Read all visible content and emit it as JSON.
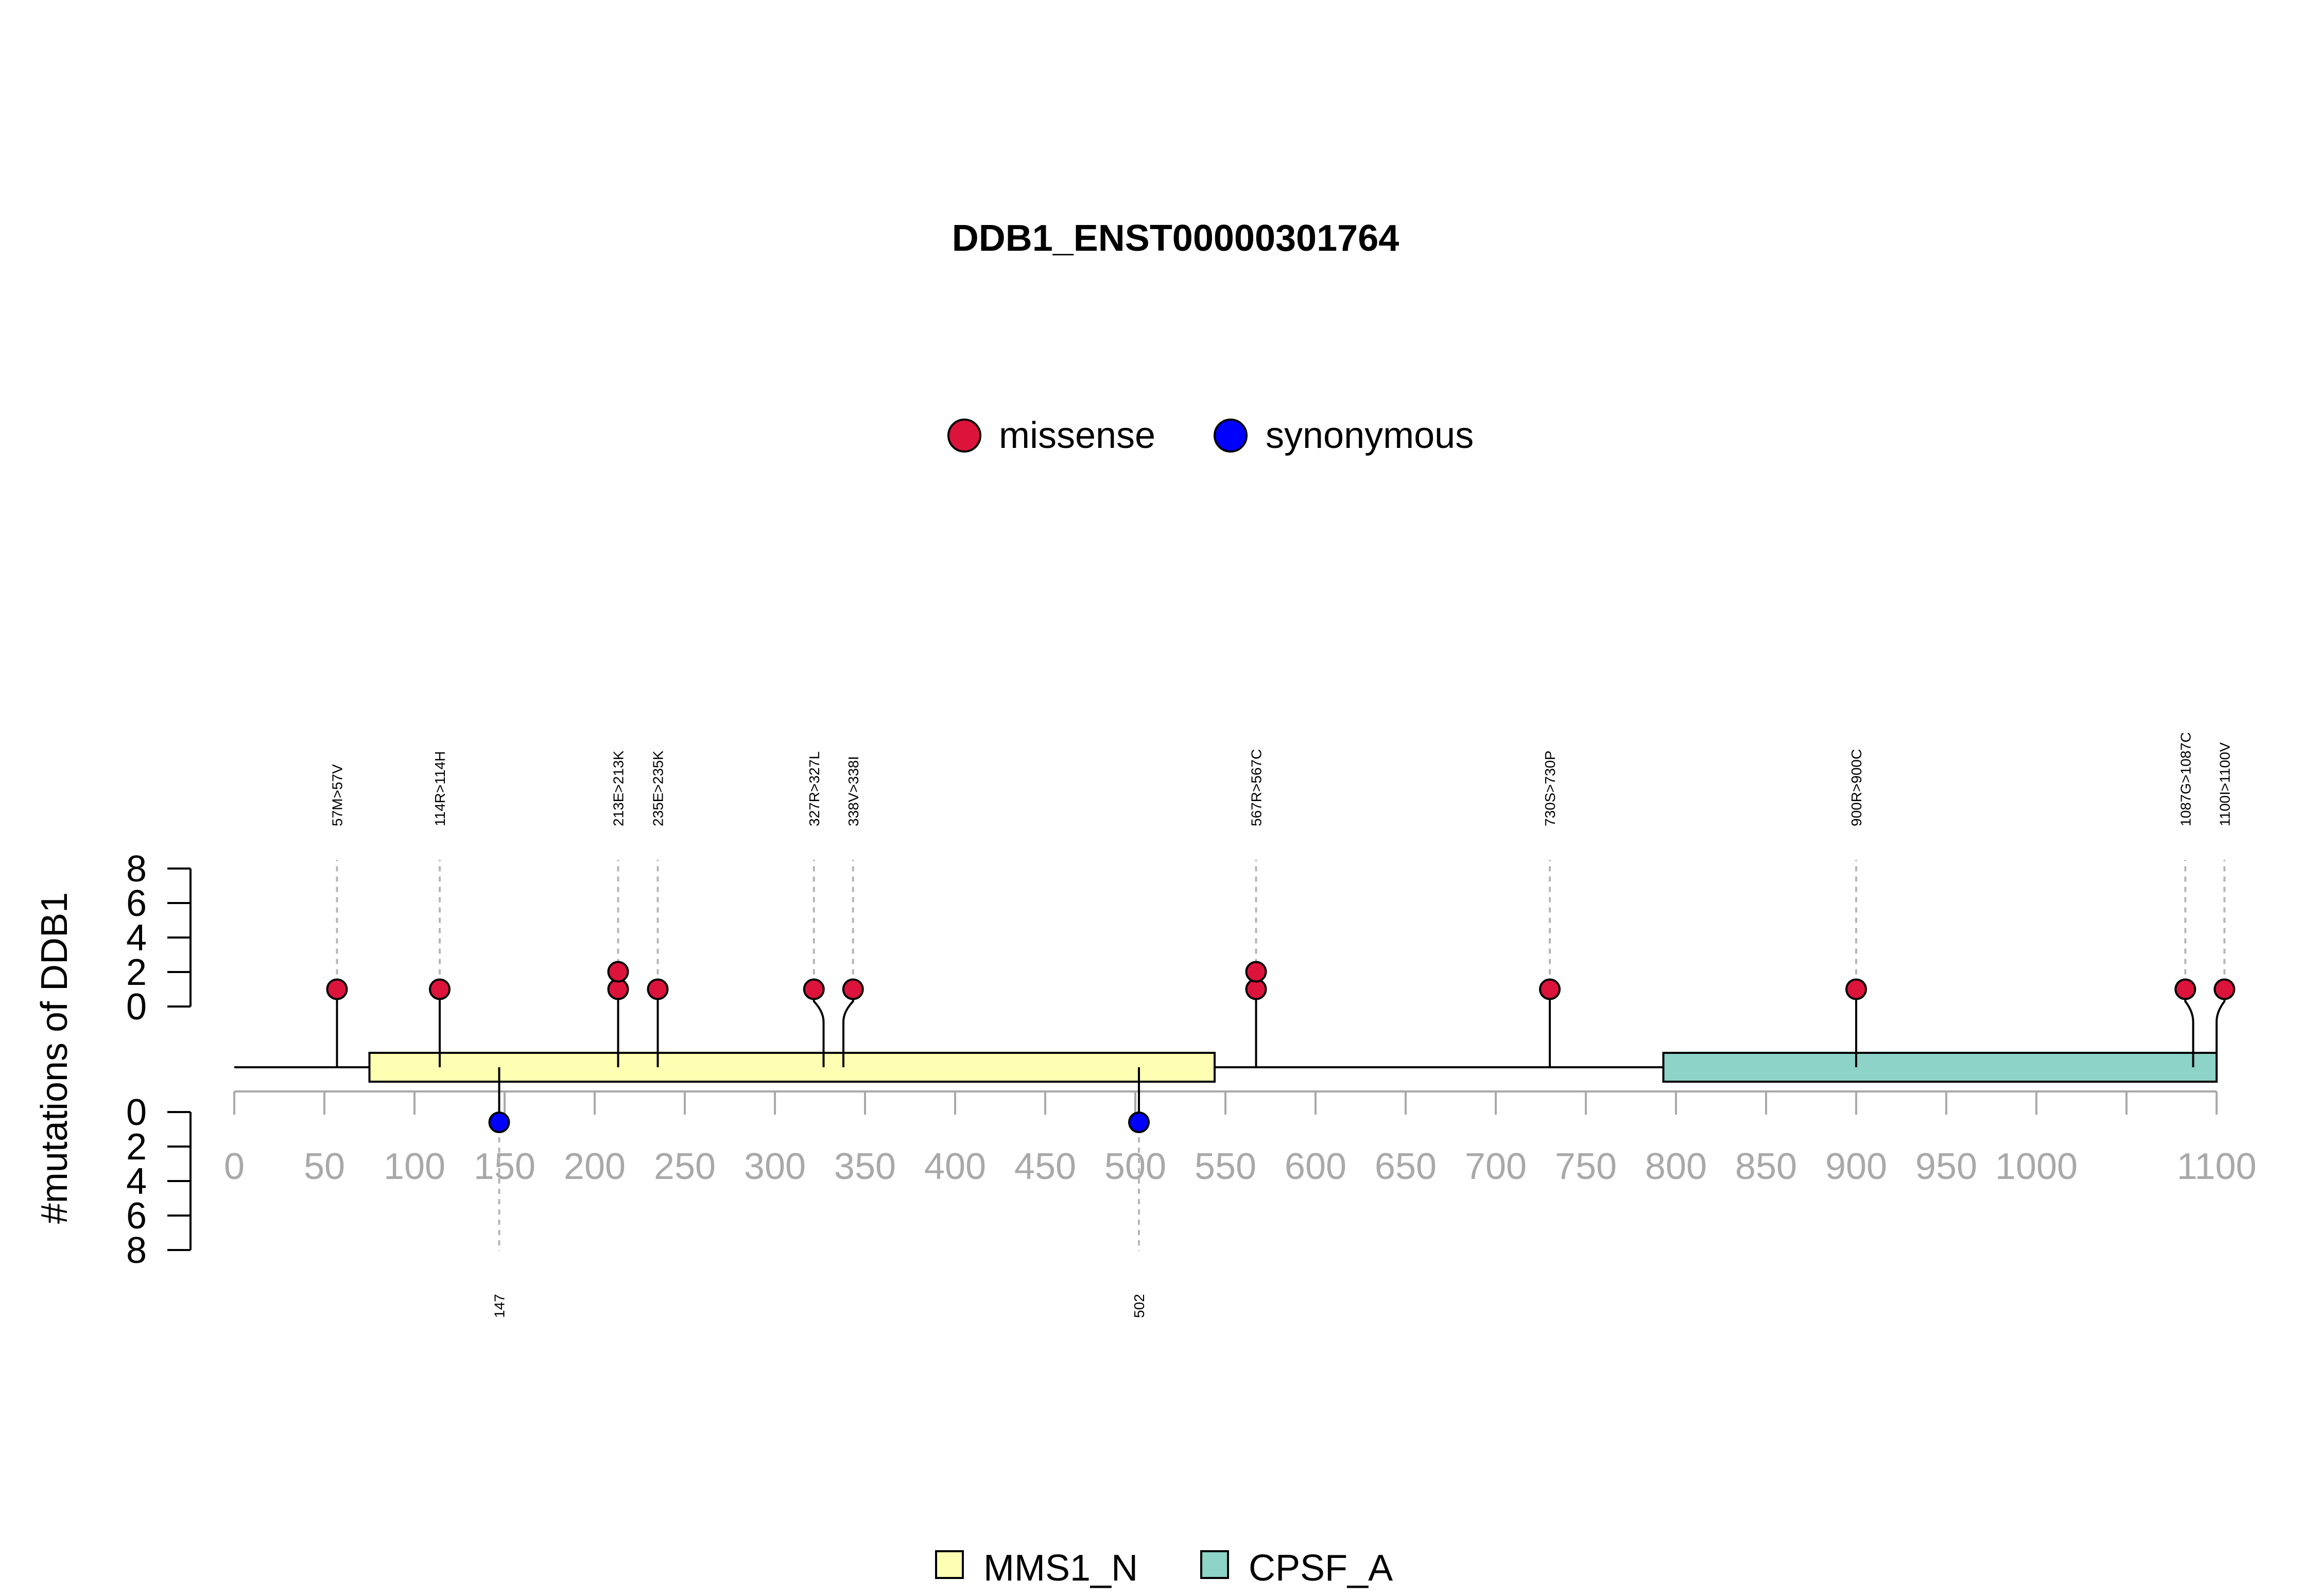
{
  "chart_data": {
    "type": "lollipop",
    "title": "DDB1_ENST00000301764",
    "ylabel": "#mutations of DDB1",
    "xlim": [
      0,
      1100
    ],
    "x_ticks": [
      0,
      50,
      100,
      150,
      200,
      250,
      300,
      350,
      400,
      450,
      500,
      550,
      600,
      650,
      700,
      750,
      800,
      850,
      900,
      950,
      1000,
      1100
    ],
    "y_ticks_top": [
      0,
      2,
      4,
      6,
      8
    ],
    "y_ticks_bottom": [
      0,
      2,
      4,
      6,
      8
    ],
    "legend_top": {
      "position": "top-center",
      "entries": [
        {
          "label": "missense",
          "color": "#DC143C"
        },
        {
          "label": "synonymous",
          "color": "#0000FF"
        }
      ]
    },
    "legend_bottom": {
      "position": "bottom-center",
      "entries": [
        {
          "label": "MMS1_N",
          "color": "#FFFFB3"
        },
        {
          "label": "CPSF_A",
          "color": "#8DD3C7"
        }
      ]
    },
    "domains": [
      {
        "name": "MMS1_N",
        "start": 75,
        "end": 544,
        "color": "#FFFFB3"
      },
      {
        "name": "CPSF_A",
        "start": 793,
        "end": 1100,
        "color": "#8DD3C7"
      }
    ],
    "missense_mutations": [
      {
        "label": "57M>57V",
        "position": 57,
        "count": 1
      },
      {
        "label": "114R>114H",
        "position": 114,
        "count": 1
      },
      {
        "label": "213E>213K",
        "position": 213,
        "count": 2
      },
      {
        "label": "235E>235K",
        "position": 235,
        "count": 1
      },
      {
        "label": "327R>327L",
        "position": 327,
        "count": 1
      },
      {
        "label": "338V>338I",
        "position": 338,
        "count": 1
      },
      {
        "label": "567R>567C",
        "position": 567,
        "count": 2
      },
      {
        "label": "730S>730P",
        "position": 730,
        "count": 1
      },
      {
        "label": "900R>900C",
        "position": 900,
        "count": 1
      },
      {
        "label": "1087G>1087C",
        "position": 1087,
        "count": 1
      },
      {
        "label": "1100I>1100V",
        "position": 1100,
        "count": 1
      }
    ],
    "synonymous_mutations": [
      {
        "label": "147",
        "position": 147,
        "count": 1
      },
      {
        "label": "502",
        "position": 502,
        "count": 1
      }
    ],
    "colors": {
      "missense": "#DC143C",
      "synonymous": "#0000FF",
      "axis_text": "#A9A9A9",
      "guide": "#B5B5B5"
    }
  }
}
